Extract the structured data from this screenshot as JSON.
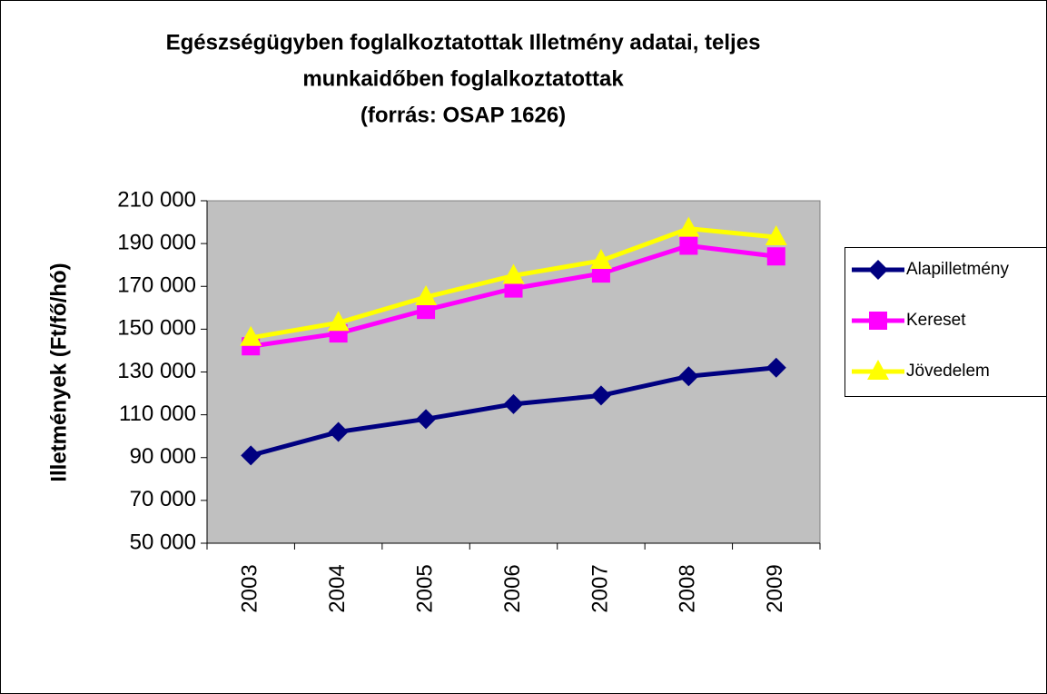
{
  "chart_data": {
    "type": "line",
    "title": [
      "Egészségügyben foglalkoztatottak Illetmény adatai, teljes",
      "munkaidőben foglalkoztatottak",
      "(forrás: OSAP 1626)"
    ],
    "y_label": "Illetmények (Ft/fő/hó)",
    "categories": [
      "2003",
      "2004",
      "2005",
      "2006",
      "2007",
      "2008",
      "2009"
    ],
    "series": [
      {
        "name": "Alapilletmény",
        "color": "#000080",
        "marker": "diamond",
        "values": [
          91000,
          102000,
          108000,
          115000,
          119000,
          128000,
          132000
        ]
      },
      {
        "name": "Kereset",
        "color": "#ff00ff",
        "marker": "square",
        "values": [
          142000,
          148000,
          159000,
          169000,
          176000,
          189000,
          184000
        ]
      },
      {
        "name": "Jövedelem",
        "color": "#ffff00",
        "marker": "triangle",
        "values": [
          146000,
          153000,
          165000,
          175000,
          182000,
          197000,
          193000
        ]
      }
    ],
    "ylim": [
      50000,
      210000
    ],
    "yticks": [
      {
        "value": 50000,
        "label": "50 000"
      },
      {
        "value": 70000,
        "label": "70 000"
      },
      {
        "value": 90000,
        "label": "90 000"
      },
      {
        "value": 110000,
        "label": "110 000"
      },
      {
        "value": 130000,
        "label": "130 000"
      },
      {
        "value": 150000,
        "label": "150 000"
      },
      {
        "value": 170000,
        "label": "170 000"
      },
      {
        "value": 190000,
        "label": "190 000"
      },
      {
        "value": 210000,
        "label": "210 000"
      }
    ],
    "plot_background": "#c0c0c0",
    "legend": "right"
  }
}
